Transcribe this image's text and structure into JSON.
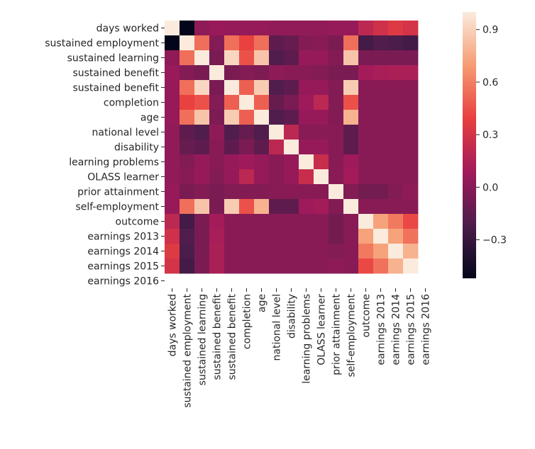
{
  "chart_data": {
    "type": "heatmap",
    "title": "",
    "xlabel": "",
    "ylabel": "",
    "row_labels": [
      "days worked",
      "sustained employment",
      "sustained learning",
      "sustained benefit",
      "sustained benefit",
      "completion",
      "age",
      "national level",
      "disability",
      "learning problems",
      "OLASS learner",
      "prior attainment",
      "self-employment",
      "outcome",
      "earnings 2013",
      "earnings 2014",
      "earnings 2015",
      "earnings 2016"
    ],
    "col_labels": [
      "days worked",
      "sustained employment",
      "sustained learning",
      "sustained benefit",
      "sustained benefit",
      "completion",
      "age",
      "national level",
      "disability",
      "learning problems",
      "OLASS learner",
      "prior attainment",
      "self-employment",
      "outcome",
      "earnings 2013",
      "earnings 2014",
      "earnings 2015",
      "earnings 2016"
    ],
    "matrix": [
      [
        1.0,
        -0.52,
        0.02,
        0.06,
        0.05,
        0.05,
        0.05,
        0.03,
        0.03,
        0.03,
        0.03,
        0.05,
        0.05,
        0.2,
        0.28,
        0.35,
        0.3,
        null
      ],
      [
        -0.52,
        1.0,
        0.55,
        -0.02,
        0.55,
        0.4,
        0.55,
        -0.15,
        -0.12,
        -0.02,
        0.0,
        -0.05,
        0.55,
        -0.25,
        -0.2,
        -0.22,
        -0.25,
        null
      ],
      [
        0.02,
        0.55,
        1.0,
        -0.05,
        0.92,
        0.45,
        0.85,
        -0.2,
        -0.15,
        0.05,
        0.05,
        -0.02,
        0.85,
        -0.05,
        -0.05,
        -0.05,
        -0.05,
        null
      ],
      [
        0.06,
        -0.02,
        -0.05,
        1.0,
        -0.05,
        -0.02,
        -0.04,
        0.02,
        0.0,
        0.0,
        -0.02,
        -0.05,
        -0.05,
        0.1,
        0.12,
        0.13,
        0.13,
        null
      ],
      [
        0.05,
        0.55,
        0.92,
        -0.05,
        1.0,
        0.5,
        0.88,
        -0.2,
        -0.15,
        0.05,
        0.05,
        -0.02,
        0.88,
        0.0,
        0.0,
        0.0,
        0.0,
        null
      ],
      [
        0.05,
        0.4,
        0.45,
        -0.02,
        0.5,
        1.0,
        0.5,
        -0.12,
        -0.05,
        0.08,
        0.2,
        -0.02,
        0.45,
        0.0,
        0.0,
        0.0,
        0.0,
        null
      ],
      [
        0.05,
        0.55,
        0.85,
        -0.04,
        0.88,
        0.5,
        1.0,
        -0.2,
        -0.15,
        0.05,
        0.05,
        -0.02,
        0.78,
        0.0,
        0.0,
        0.0,
        0.0,
        null
      ],
      [
        0.03,
        -0.15,
        -0.2,
        0.02,
        -0.2,
        -0.12,
        -0.2,
        1.0,
        0.2,
        0.0,
        0.0,
        0.0,
        -0.15,
        0.0,
        0.0,
        0.0,
        0.0,
        null
      ],
      [
        0.03,
        -0.12,
        -0.15,
        0.0,
        -0.15,
        -0.05,
        -0.15,
        0.2,
        1.0,
        0.05,
        0.05,
        0.0,
        -0.15,
        0.0,
        0.0,
        0.0,
        0.0,
        null
      ],
      [
        0.03,
        -0.02,
        0.05,
        0.0,
        0.05,
        0.08,
        0.05,
        0.0,
        0.05,
        1.0,
        0.25,
        0.0,
        0.08,
        0.0,
        0.0,
        0.0,
        0.0,
        null
      ],
      [
        0.03,
        0.0,
        0.05,
        -0.02,
        0.05,
        0.2,
        0.05,
        0.0,
        0.05,
        0.25,
        1.0,
        0.0,
        0.1,
        0.0,
        0.0,
        0.0,
        0.0,
        null
      ],
      [
        0.05,
        -0.05,
        -0.02,
        -0.05,
        -0.02,
        -0.02,
        -0.02,
        0.0,
        0.0,
        0.0,
        0.0,
        1.0,
        -0.02,
        -0.08,
        -0.08,
        -0.02,
        0.02,
        null
      ],
      [
        0.05,
        0.55,
        0.85,
        -0.05,
        0.88,
        0.45,
        0.78,
        -0.15,
        -0.15,
        0.08,
        0.1,
        -0.02,
        1.0,
        0.0,
        0.0,
        0.0,
        0.0,
        null
      ],
      [
        0.2,
        -0.25,
        -0.05,
        0.1,
        0.0,
        0.0,
        0.0,
        0.0,
        0.0,
        0.0,
        0.0,
        -0.08,
        0.0,
        1.0,
        0.72,
        0.58,
        0.42,
        null
      ],
      [
        0.28,
        -0.2,
        -0.05,
        0.12,
        0.0,
        0.0,
        0.0,
        0.0,
        0.0,
        0.0,
        0.0,
        -0.08,
        0.0,
        0.72,
        1.0,
        0.72,
        0.56,
        null
      ],
      [
        0.35,
        -0.22,
        -0.05,
        0.13,
        0.0,
        0.0,
        0.0,
        0.0,
        0.0,
        0.0,
        0.0,
        -0.02,
        0.0,
        0.58,
        0.72,
        1.0,
        0.78,
        null
      ],
      [
        0.3,
        -0.25,
        -0.05,
        0.13,
        0.0,
        0.0,
        0.0,
        0.0,
        0.0,
        0.0,
        0.0,
        0.02,
        0.0,
        0.42,
        0.56,
        0.78,
        1.0,
        null
      ],
      [
        null,
        null,
        null,
        null,
        null,
        null,
        null,
        null,
        null,
        null,
        null,
        null,
        null,
        null,
        null,
        null,
        null,
        null
      ]
    ],
    "colorbar": {
      "min": -0.52,
      "max": 1.0,
      "ticks": [
        0.9,
        0.6,
        0.3,
        0.0,
        -0.3
      ],
      "tick_labels": [
        "0.9",
        "0.6",
        "0.3",
        "0.0",
        "−0.3"
      ],
      "colormap": "rocket",
      "colormap_stops": [
        "#03051a",
        "#4c1d4b",
        "#a11a5b",
        "#e83f3f",
        "#f69c73",
        "#faebdd"
      ]
    },
    "legend": "right",
    "grid": false
  }
}
